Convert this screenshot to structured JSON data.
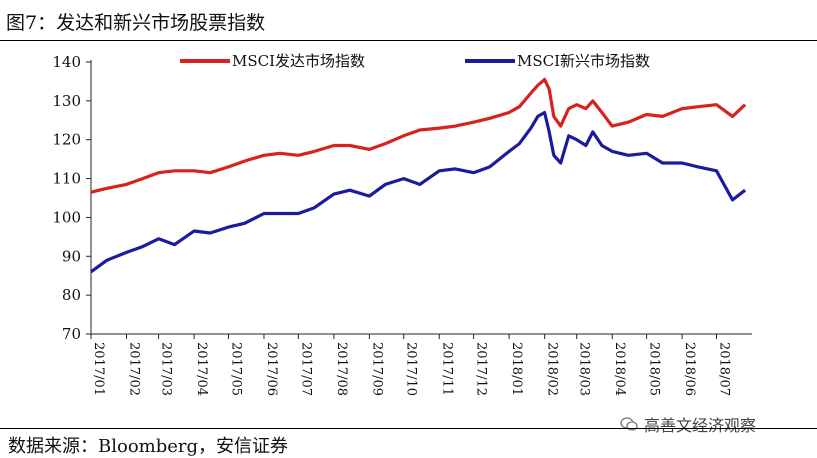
{
  "figure": {
    "title": "图7：发达和新兴市场股票指数",
    "source": "数据来源：Bloomberg，安信证券",
    "watermark": "高善文经济观察"
  },
  "chart_data": {
    "type": "line",
    "title": "",
    "xlabel": "",
    "ylabel": "",
    "ylim": [
      70,
      140
    ],
    "yticks": [
      70,
      80,
      90,
      100,
      110,
      120,
      130,
      140
    ],
    "xlim": [
      "2017-01",
      "2018-08"
    ],
    "xticks": [
      "2017/01",
      "2017/02",
      "2017/03",
      "2017/04",
      "2017/05",
      "2017/06",
      "2017/07",
      "2017/08",
      "2017/09",
      "2017/10",
      "2017/11",
      "2017/12",
      "2018/01",
      "2018/02",
      "2018/03",
      "2018/04",
      "2018/05",
      "2018/06",
      "2018/07"
    ],
    "grid": false,
    "legend_position": "top",
    "series": [
      {
        "name": "MSCI发达市场指数",
        "color": "#d9211d",
        "x": [
          "2017-01-01",
          "2017-01-15",
          "2017-02-01",
          "2017-02-15",
          "2017-03-01",
          "2017-03-15",
          "2017-04-01",
          "2017-04-15",
          "2017-05-01",
          "2017-05-15",
          "2017-06-01",
          "2017-06-15",
          "2017-07-01",
          "2017-07-15",
          "2017-08-01",
          "2017-08-15",
          "2017-09-01",
          "2017-09-15",
          "2017-10-01",
          "2017-10-15",
          "2017-11-01",
          "2017-11-15",
          "2017-12-01",
          "2017-12-15",
          "2018-01-01",
          "2018-01-10",
          "2018-01-20",
          "2018-01-26",
          "2018-02-01",
          "2018-02-05",
          "2018-02-09",
          "2018-02-15",
          "2018-02-22",
          "2018-03-01",
          "2018-03-09",
          "2018-03-15",
          "2018-03-23",
          "2018-04-01",
          "2018-04-15",
          "2018-05-01",
          "2018-05-15",
          "2018-06-01",
          "2018-06-15",
          "2018-07-01",
          "2018-07-15",
          "2018-07-26"
        ],
        "values": [
          106.5,
          107.5,
          108.5,
          110,
          111.5,
          112,
          112,
          111.5,
          113,
          114.5,
          116,
          116.5,
          116,
          117,
          118.5,
          118.5,
          117.5,
          119,
          121,
          122.5,
          123,
          123.5,
          124.5,
          125.5,
          127,
          128.5,
          132,
          134,
          135.5,
          133,
          126,
          123.5,
          128,
          129,
          128,
          130,
          127,
          123.5,
          124.5,
          126.5,
          126,
          128,
          128.5,
          129,
          126,
          129
        ]
      },
      {
        "name": "MSCI新兴市场指数",
        "color": "#1b1ba0",
        "x": [
          "2017-01-01",
          "2017-01-15",
          "2017-02-01",
          "2017-02-15",
          "2017-03-01",
          "2017-03-15",
          "2017-04-01",
          "2017-04-15",
          "2017-05-01",
          "2017-05-15",
          "2017-06-01",
          "2017-06-15",
          "2017-07-01",
          "2017-07-15",
          "2017-08-01",
          "2017-08-15",
          "2017-09-01",
          "2017-09-15",
          "2017-10-01",
          "2017-10-15",
          "2017-11-01",
          "2017-11-15",
          "2017-12-01",
          "2017-12-15",
          "2018-01-01",
          "2018-01-10",
          "2018-01-20",
          "2018-01-26",
          "2018-02-01",
          "2018-02-05",
          "2018-02-09",
          "2018-02-15",
          "2018-02-22",
          "2018-03-01",
          "2018-03-09",
          "2018-03-15",
          "2018-03-23",
          "2018-04-01",
          "2018-04-15",
          "2018-05-01",
          "2018-05-15",
          "2018-06-01",
          "2018-06-15",
          "2018-07-01",
          "2018-07-15",
          "2018-07-26"
        ],
        "values": [
          86,
          89,
          91,
          92.5,
          94.5,
          93,
          96.5,
          96,
          97.5,
          98.5,
          101,
          101,
          101,
          102.5,
          106,
          107,
          105.5,
          108.5,
          110,
          108.5,
          112,
          112.5,
          111.5,
          113,
          117,
          119,
          123,
          126,
          127,
          122,
          116,
          114,
          121,
          120,
          118.5,
          122,
          118.5,
          117,
          116,
          116.5,
          114,
          114,
          113,
          112,
          104.5,
          107
        ]
      }
    ]
  }
}
